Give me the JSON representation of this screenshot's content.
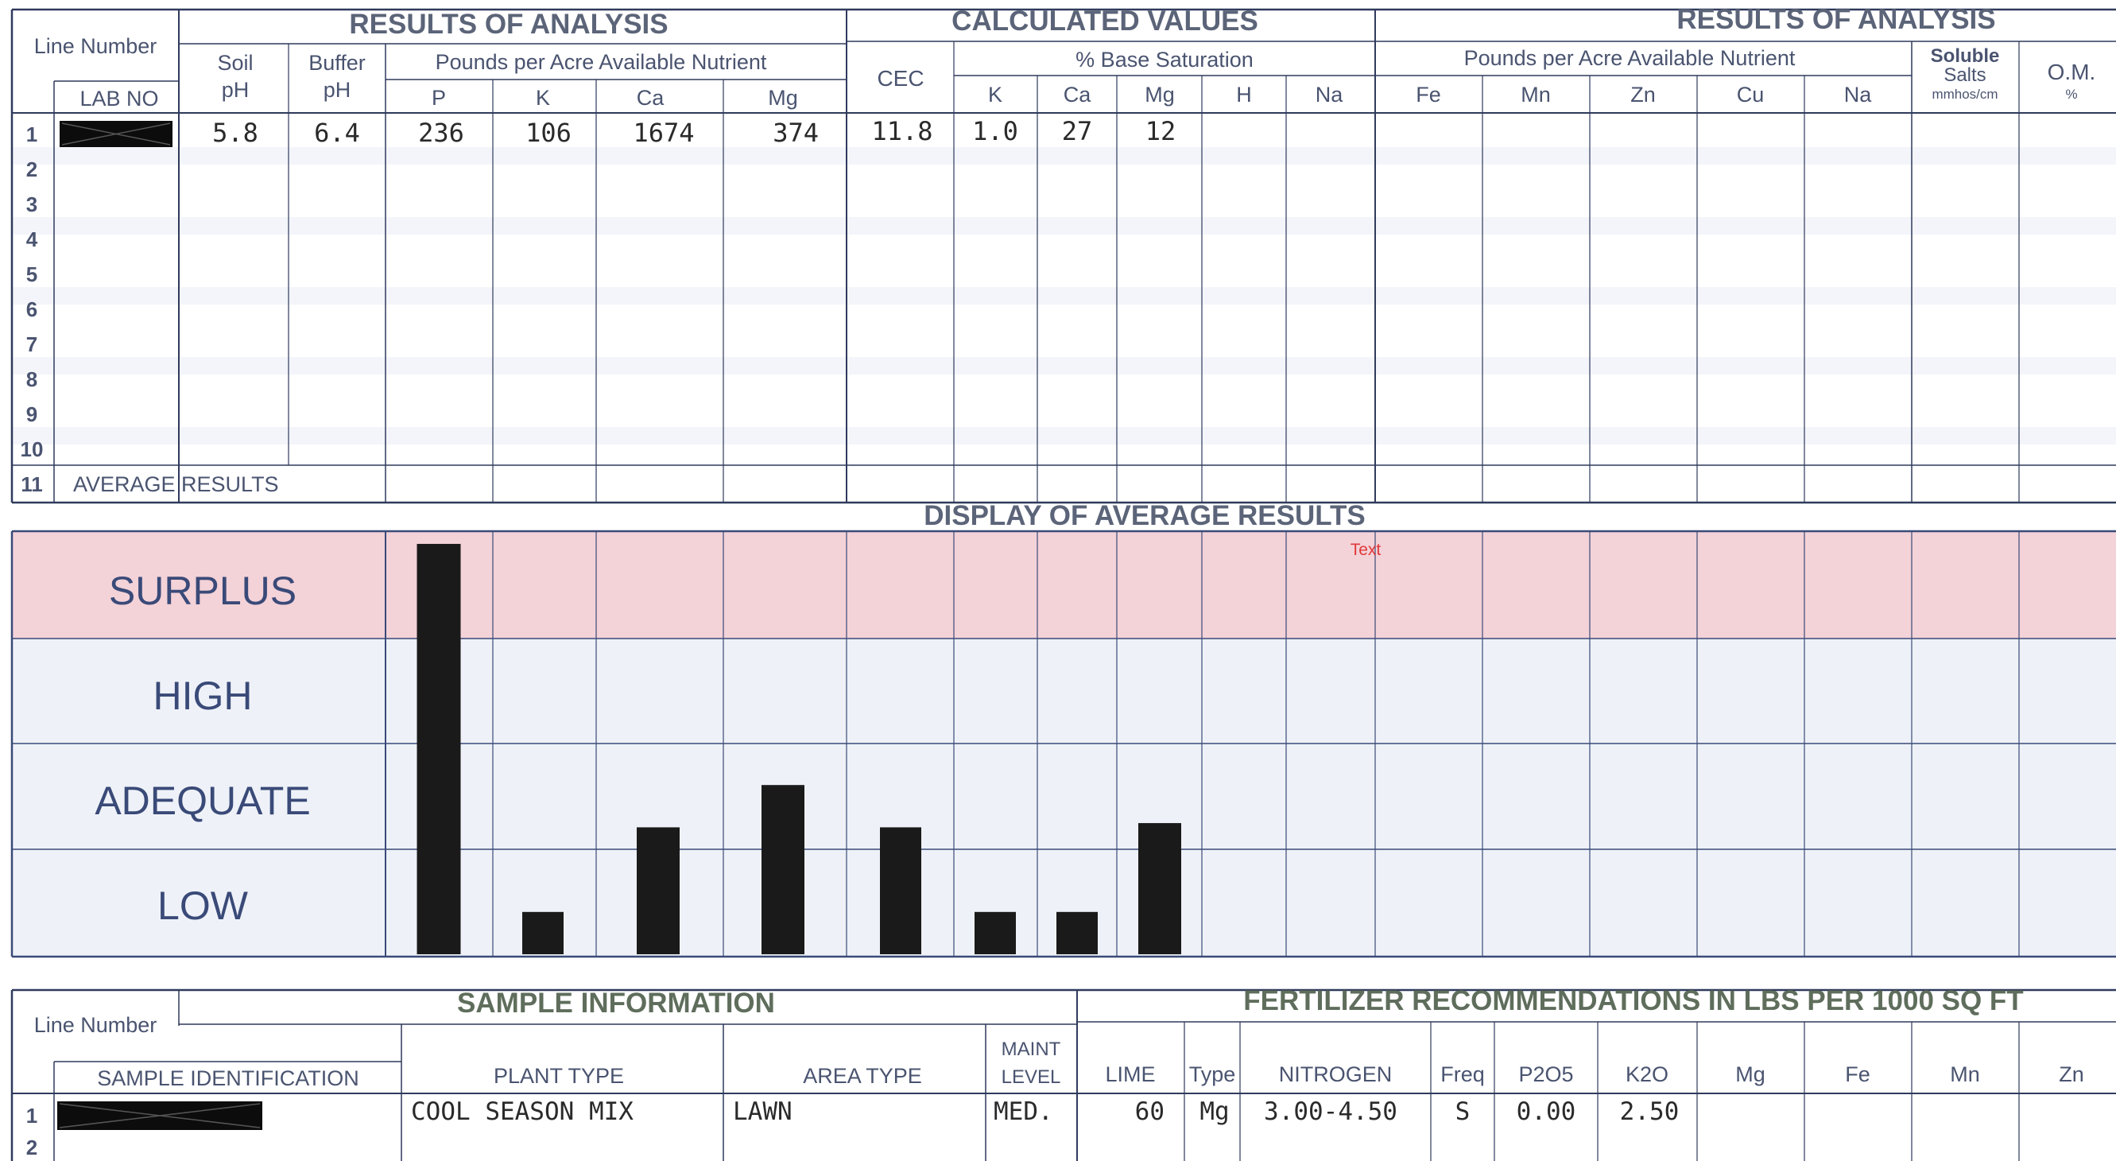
{
  "top_table": {
    "groups": {
      "results_left": "RESULTS OF ANALYSIS",
      "calculated": "CALCULATED VALUES",
      "results_right": "RESULTS OF ANALYSIS"
    },
    "line_number_label": "Line Number",
    "lab_no_label": "LAB NO",
    "soil_ph": [
      "Soil",
      "pH"
    ],
    "buffer_ph": [
      "Buffer",
      "pH"
    ],
    "ppa_left": "Pounds per Acre Available Nutrient",
    "ppa_right": "Pounds per Acre Available Nutrient",
    "cec": "CEC",
    "base_sat": "% Base Saturation",
    "soluble": [
      "Soluble",
      "Salts",
      "mmhos/cm"
    ],
    "om": [
      "O.M.",
      "%"
    ],
    "col_left": [
      "P",
      "K",
      "Ca",
      "Mg"
    ],
    "col_mid": [
      "K",
      "Ca",
      "Mg",
      "H",
      "Na"
    ],
    "col_right": [
      "Fe",
      "Mn",
      "Zn",
      "Cu",
      "Na"
    ],
    "line_numbers": [
      "1",
      "2",
      "3",
      "4",
      "5",
      "6",
      "7",
      "8",
      "9",
      "10",
      "11"
    ],
    "average_label": "AVERAGE RESULTS",
    "row1": {
      "soil_ph": "5.8",
      "buffer_ph": "6.4",
      "p": "236",
      "k": "106",
      "ca": "1674",
      "mg": "374",
      "cec": "11.8",
      "bs_k": "1.0",
      "bs_ca": "27",
      "bs_mg": "12"
    }
  },
  "display": {
    "title": "DISPLAY OF AVERAGE RESULTS",
    "stray_text": "Text",
    "levels": [
      "SURPLUS",
      "HIGH",
      "ADEQUATE",
      "LOW"
    ],
    "colors": {
      "surplus": "#f2d0d6",
      "normal": "#eef2f8",
      "bars": "#1a1a1a",
      "grid": "#3a4a78"
    }
  },
  "chart_data": {
    "type": "bar",
    "categories": [
      "P",
      "K",
      "Ca",
      "Mg",
      "CEC",
      "K",
      "Ca",
      "Mg"
    ],
    "values": [
      0.97,
      0.1,
      0.3,
      0.4,
      0.3,
      0.1,
      0.1,
      0.31
    ],
    "ylim": [
      0,
      1
    ],
    "title": "DISPLAY OF AVERAGE RESULTS",
    "xlabel": "",
    "ylabel": ""
  },
  "bottom_table": {
    "sample_info": "SAMPLE INFORMATION",
    "fert_title": "FERTILIZER RECOMMENDATIONS IN LBS PER 1000 SQ FT",
    "line_number_label": "Line Number",
    "sample_id_label": "SAMPLE IDENTIFICATION",
    "plant_type_label": "PLANT TYPE",
    "area_type_label": "AREA TYPE",
    "maint_label": [
      "MAINT",
      "LEVEL"
    ],
    "fert_cols": [
      "LIME",
      "Type",
      "NITROGEN",
      "Freq",
      "P2O5",
      "K2O",
      "Mg",
      "Fe",
      "Mn",
      "Zn"
    ],
    "line_numbers": [
      "1",
      "2"
    ],
    "row1": {
      "plant_type": "COOL SEASON MIX",
      "area_type": "LAWN",
      "maint": "MED.",
      "lime": "60",
      "type": "Mg",
      "nitrogen": "3.00-4.50",
      "freq": "S",
      "p2o5": "0.00",
      "k2o": "2.50"
    }
  }
}
